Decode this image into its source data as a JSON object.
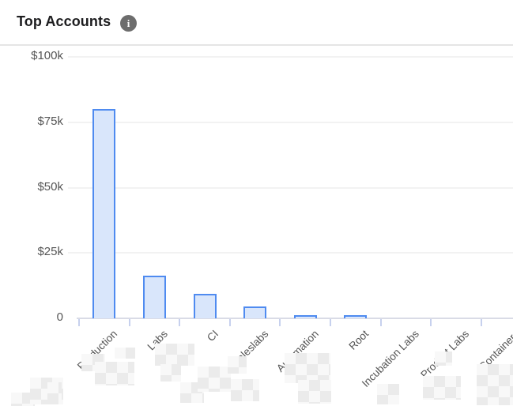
{
  "header": {
    "title": "Top Accounts"
  },
  "icons": {
    "info_glyph": "i"
  },
  "chart_data": {
    "type": "bar",
    "title": "Top Accounts",
    "categories": [
      "Production",
      "Labs",
      "CI",
      "-saleslabs",
      "Automation",
      "Root",
      "Incubation Labs",
      "Product Labs",
      "Containers"
    ],
    "values": [
      80000,
      16300,
      9500,
      4500,
      1000,
      1200,
      0,
      0,
      0
    ],
    "xlabel": "",
    "ylabel": "",
    "ylim": [
      0,
      100000
    ],
    "y_ticks": [
      {
        "label": "$100k",
        "value": 100000
      },
      {
        "label": "$75k",
        "value": 75000
      },
      {
        "label": "$50k",
        "value": 50000
      },
      {
        "label": "$25k",
        "value": 25000
      },
      {
        "label": "0",
        "value": 0
      }
    ],
    "grid": "horizontal",
    "legend": "none",
    "x_label_rotation_deg": -45,
    "colors": {
      "bar_fill": "#d9e6fb",
      "bar_border": "#4f8bf0",
      "gridline": "#f2f2f2",
      "axis_line": "#d9dbe6",
      "tick_mark": "#c7d1ee",
      "tick_label": "#565656",
      "title_text": "#1d1d1f",
      "info_icon_bg": "#6d6d6d",
      "divider": "#e5e5e5"
    }
  }
}
